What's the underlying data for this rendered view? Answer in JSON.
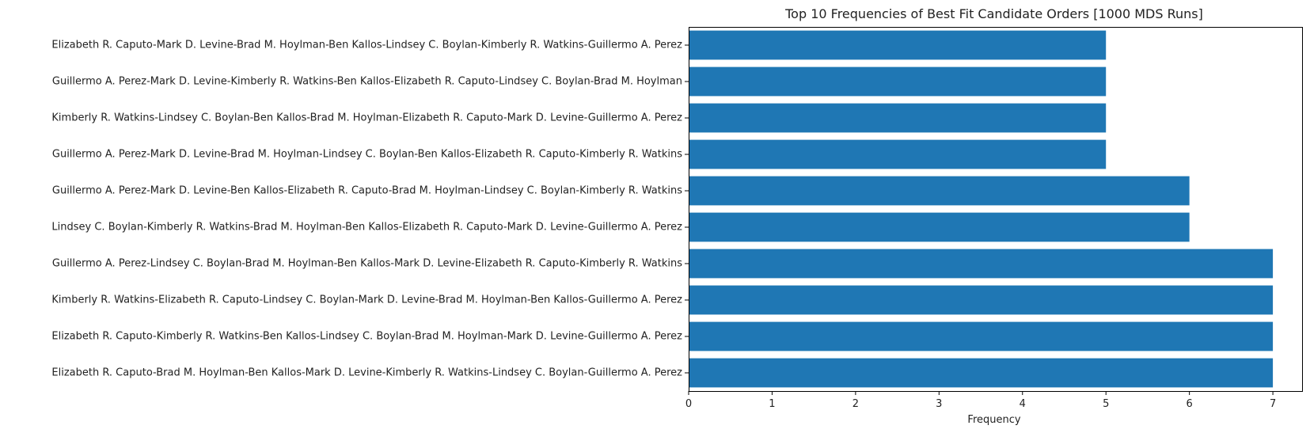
{
  "chart_data": {
    "type": "bar",
    "orientation": "horizontal",
    "title": "Top 10 Frequencies of Best Fit Candidate Orders [1000 MDS Runs]",
    "xlabel": "Frequency",
    "ylabel": "",
    "xlim": [
      0,
      7.35
    ],
    "xticks": [
      0,
      1,
      2,
      3,
      4,
      5,
      6,
      7
    ],
    "grid": false,
    "bar_color": "#1f77b4",
    "categories": [
      "Elizabeth R. Caputo-Mark D. Levine-Brad M. Hoylman-Ben Kallos-Lindsey C. Boylan-Kimberly R. Watkins-Guillermo A. Perez",
      "Guillermo A. Perez-Mark D. Levine-Kimberly R. Watkins-Ben Kallos-Elizabeth R. Caputo-Lindsey C. Boylan-Brad M. Hoylman",
      "Kimberly R. Watkins-Lindsey C. Boylan-Ben Kallos-Brad M. Hoylman-Elizabeth R. Caputo-Mark D. Levine-Guillermo A. Perez",
      "Guillermo A. Perez-Mark D. Levine-Brad M. Hoylman-Lindsey C. Boylan-Ben Kallos-Elizabeth R. Caputo-Kimberly R. Watkins",
      "Guillermo A. Perez-Mark D. Levine-Ben Kallos-Elizabeth R. Caputo-Brad M. Hoylman-Lindsey C. Boylan-Kimberly R. Watkins",
      "Lindsey C. Boylan-Kimberly R. Watkins-Brad M. Hoylman-Ben Kallos-Elizabeth R. Caputo-Mark D. Levine-Guillermo A. Perez",
      "Guillermo A. Perez-Lindsey C. Boylan-Brad M. Hoylman-Ben Kallos-Mark D. Levine-Elizabeth R. Caputo-Kimberly R. Watkins",
      "Kimberly R. Watkins-Elizabeth R. Caputo-Lindsey C. Boylan-Mark D. Levine-Brad M. Hoylman-Ben Kallos-Guillermo A. Perez",
      "Elizabeth R. Caputo-Kimberly R. Watkins-Ben Kallos-Lindsey C. Boylan-Brad M. Hoylman-Mark D. Levine-Guillermo A. Perez",
      "Elizabeth R. Caputo-Brad M. Hoylman-Ben Kallos-Mark D. Levine-Kimberly R. Watkins-Lindsey C. Boylan-Guillermo A. Perez"
    ],
    "values": [
      5,
      5,
      5,
      5,
      6,
      6,
      7,
      7,
      7,
      7
    ]
  }
}
